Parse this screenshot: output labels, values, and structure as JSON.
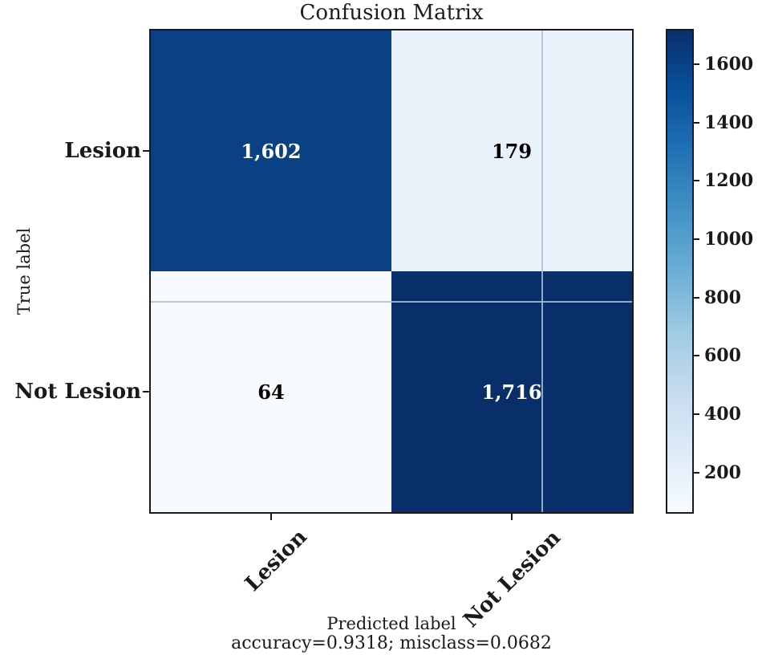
{
  "title": "Confusion Matrix",
  "chart_data": {
    "type": "heatmap",
    "title": "Confusion Matrix",
    "xlabel": "Predicted label",
    "ylabel": "True label",
    "x_categories": [
      "Lesion",
      "Not Lesion"
    ],
    "y_categories": [
      "Lesion",
      "Not Lesion"
    ],
    "matrix": [
      [
        1602,
        179
      ],
      [
        64,
        1716
      ]
    ],
    "cell_labels": [
      [
        "1,602",
        "179"
      ],
      [
        "64",
        "1,716"
      ]
    ],
    "cell_colors": [
      [
        "#0a4183",
        "#e9f1fa"
      ],
      [
        "#f7fbfe",
        "#092f6b"
      ]
    ],
    "cell_text_colors": [
      [
        "#ffffff",
        "#000000"
      ],
      [
        "#000000",
        "#ffffff"
      ]
    ],
    "colormap": "Blues",
    "vmin": 64,
    "vmax": 1716,
    "colorbar_ticks": [
      200,
      400,
      600,
      800,
      1000,
      1200,
      1400,
      1600
    ],
    "annotation": "accuracy=0.9318; misclass=0.0682",
    "accuracy": 0.9318,
    "misclass": 0.0682,
    "legend_position": "right-colorbar",
    "grid": false
  },
  "colors": {
    "cmap_dark": "#08306b",
    "cmap_light": "#f7fbff",
    "spine": "#1a1a1a",
    "text": "#1a1a1a"
  }
}
